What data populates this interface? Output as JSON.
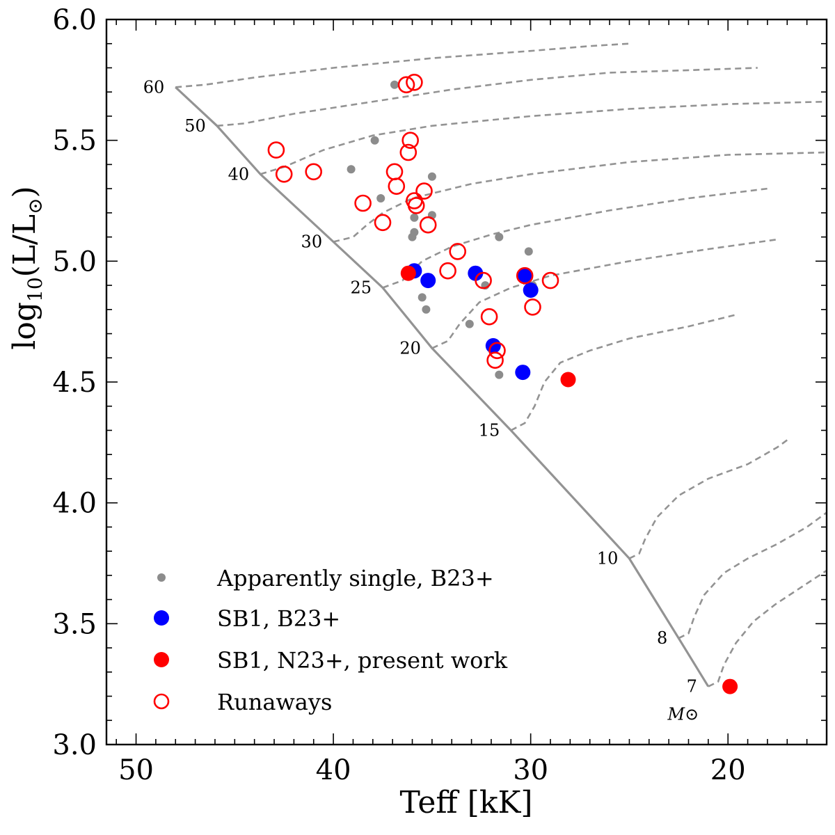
{
  "chart_data": {
    "type": "scatter",
    "xlabel": "Teff [kK]",
    "ylabel": "log10(L/L⊙)",
    "xlim": [
      51.5,
      15.0
    ],
    "ylim": [
      3.0,
      6.0
    ],
    "xticks": [
      50,
      40,
      30,
      20
    ],
    "yticks": [
      3.0,
      3.5,
      4.0,
      4.5,
      5.0,
      5.5,
      6.0
    ],
    "tick_labels_x": [
      "50",
      "40",
      "30",
      "20"
    ],
    "tick_labels_y": [
      "3.0",
      "3.5",
      "4.0",
      "4.5",
      "5.0",
      "5.5",
      "6.0"
    ],
    "zams": {
      "color": "#939393",
      "points": [
        [
          48.0,
          5.72
        ],
        [
          45.9,
          5.56
        ],
        [
          43.7,
          5.36
        ],
        [
          40.0,
          5.08
        ],
        [
          37.5,
          4.89
        ],
        [
          35.0,
          4.64
        ],
        [
          31.0,
          4.3
        ],
        [
          25.0,
          3.77
        ],
        [
          22.5,
          3.44
        ],
        [
          21.0,
          3.24
        ]
      ]
    },
    "mass_labels": [
      {
        "label": "60",
        "t": 48.0,
        "l": 5.72
      },
      {
        "label": "50",
        "t": 45.9,
        "l": 5.56
      },
      {
        "label": "40",
        "t": 43.7,
        "l": 5.36
      },
      {
        "label": "30",
        "t": 40.0,
        "l": 5.08
      },
      {
        "label": "25",
        "t": 37.5,
        "l": 4.89
      },
      {
        "label": "20",
        "t": 35.0,
        "l": 4.64
      },
      {
        "label": "15",
        "t": 31.0,
        "l": 4.3
      },
      {
        "label": "10",
        "t": 25.0,
        "l": 3.77
      },
      {
        "label": "8",
        "t": 22.5,
        "l": 3.44
      },
      {
        "label": "7",
        "t": 21.0,
        "l": 3.24
      }
    ],
    "mass_unit_label": "M⊙",
    "tracks": [
      {
        "mass": "60",
        "points": [
          [
            48.0,
            5.72
          ],
          [
            46.5,
            5.73
          ],
          [
            44.0,
            5.76
          ],
          [
            40.0,
            5.8
          ],
          [
            35.0,
            5.84
          ],
          [
            30.0,
            5.87
          ],
          [
            27.0,
            5.89
          ],
          [
            25.0,
            5.9
          ]
        ]
      },
      {
        "mass": "50",
        "points": [
          [
            45.9,
            5.56
          ],
          [
            44.5,
            5.57
          ],
          [
            42.0,
            5.61
          ],
          [
            38.0,
            5.66
          ],
          [
            34.0,
            5.71
          ],
          [
            30.0,
            5.75
          ],
          [
            26.0,
            5.78
          ],
          [
            22.0,
            5.79
          ],
          [
            18.5,
            5.8
          ]
        ]
      },
      {
        "mass": "40",
        "points": [
          [
            43.7,
            5.36
          ],
          [
            42.5,
            5.39
          ],
          [
            40.5,
            5.46
          ],
          [
            38.0,
            5.52
          ],
          [
            35.0,
            5.56
          ],
          [
            30.0,
            5.6
          ],
          [
            25.0,
            5.63
          ],
          [
            20.0,
            5.65
          ],
          [
            15.0,
            5.66
          ]
        ]
      },
      {
        "mass": "30",
        "points": [
          [
            40.0,
            5.08
          ],
          [
            39.0,
            5.1
          ],
          [
            38.3,
            5.15
          ],
          [
            37.5,
            5.2
          ],
          [
            36.0,
            5.26
          ],
          [
            33.0,
            5.32
          ],
          [
            30.0,
            5.36
          ],
          [
            25.0,
            5.41
          ],
          [
            20.0,
            5.44
          ],
          [
            15.0,
            5.45
          ]
        ]
      },
      {
        "mass": "25",
        "points": [
          [
            37.5,
            4.89
          ],
          [
            36.5,
            4.92
          ],
          [
            35.5,
            5.0
          ],
          [
            34.0,
            5.06
          ],
          [
            32.0,
            5.11
          ],
          [
            30.0,
            5.15
          ],
          [
            26.0,
            5.21
          ],
          [
            22.0,
            5.26
          ],
          [
            18.0,
            5.3
          ]
        ]
      },
      {
        "mass": "20",
        "points": [
          [
            35.0,
            4.64
          ],
          [
            34.2,
            4.67
          ],
          [
            33.6,
            4.74
          ],
          [
            32.6,
            4.83
          ],
          [
            31.0,
            4.89
          ],
          [
            29.0,
            4.94
          ],
          [
            25.0,
            5.0
          ],
          [
            21.0,
            5.05
          ],
          [
            17.5,
            5.09
          ]
        ]
      },
      {
        "mass": "15",
        "points": [
          [
            31.0,
            4.3
          ],
          [
            30.3,
            4.33
          ],
          [
            29.8,
            4.4
          ],
          [
            29.3,
            4.5
          ],
          [
            28.5,
            4.58
          ],
          [
            27.0,
            4.63
          ],
          [
            25.0,
            4.68
          ],
          [
            22.0,
            4.73
          ],
          [
            19.5,
            4.78
          ]
        ]
      },
      {
        "mass": "10",
        "points": [
          [
            25.0,
            3.77
          ],
          [
            24.5,
            3.79
          ],
          [
            24.2,
            3.85
          ],
          [
            23.6,
            3.94
          ],
          [
            22.5,
            4.03
          ],
          [
            21.0,
            4.1
          ],
          [
            19.0,
            4.16
          ],
          [
            17.5,
            4.23
          ],
          [
            17.0,
            4.26
          ]
        ]
      },
      {
        "mass": "8",
        "points": [
          [
            22.5,
            3.44
          ],
          [
            22.0,
            3.46
          ],
          [
            21.7,
            3.53
          ],
          [
            21.2,
            3.62
          ],
          [
            20.2,
            3.71
          ],
          [
            19.0,
            3.77
          ],
          [
            17.5,
            3.83
          ],
          [
            16.0,
            3.9
          ],
          [
            15.0,
            3.96
          ]
        ]
      },
      {
        "mass": "7",
        "points": [
          [
            21.0,
            3.24
          ],
          [
            20.5,
            3.26
          ],
          [
            20.2,
            3.33
          ],
          [
            19.6,
            3.42
          ],
          [
            18.7,
            3.51
          ],
          [
            17.6,
            3.58
          ],
          [
            16.3,
            3.65
          ],
          [
            15.0,
            3.72
          ]
        ]
      }
    ],
    "series": [
      {
        "name": "Apparently single, B23+",
        "marker": "small-dot",
        "color": "#8c8c8c",
        "points": [
          [
            36.9,
            5.73
          ],
          [
            37.9,
            5.5
          ],
          [
            39.1,
            5.38
          ],
          [
            37.6,
            5.26
          ],
          [
            35.9,
            5.18
          ],
          [
            35.0,
            5.35
          ],
          [
            35.0,
            5.19
          ],
          [
            36.0,
            5.1
          ],
          [
            35.9,
            5.12
          ],
          [
            31.6,
            5.1
          ],
          [
            30.1,
            5.04
          ],
          [
            35.5,
            4.85
          ],
          [
            35.3,
            4.8
          ],
          [
            33.1,
            4.74
          ],
          [
            31.6,
            4.53
          ],
          [
            32.3,
            4.9
          ],
          [
            36.1,
            4.95
          ],
          [
            29.9,
            4.9
          ]
        ]
      },
      {
        "name": "SB1, B23+",
        "marker": "filled-circle",
        "color": "#0000ff",
        "points": [
          [
            35.9,
            4.96
          ],
          [
            35.2,
            4.92
          ],
          [
            32.8,
            4.95
          ],
          [
            30.3,
            4.94
          ],
          [
            30.0,
            4.88
          ],
          [
            31.9,
            4.65
          ],
          [
            30.4,
            4.54
          ]
        ]
      },
      {
        "name": "SB1, N23+, present work",
        "marker": "filled-circle",
        "color": "#ff0000",
        "points": [
          [
            36.2,
            4.95
          ],
          [
            28.1,
            4.51
          ],
          [
            19.9,
            3.24
          ]
        ]
      },
      {
        "name": "Runaways",
        "marker": "open-circle",
        "color": "#ff0000",
        "points": [
          [
            36.3,
            5.73
          ],
          [
            35.9,
            5.74
          ],
          [
            36.1,
            5.5
          ],
          [
            36.2,
            5.45
          ],
          [
            42.9,
            5.46
          ],
          [
            42.5,
            5.36
          ],
          [
            41.0,
            5.37
          ],
          [
            36.9,
            5.37
          ],
          [
            36.8,
            5.31
          ],
          [
            38.5,
            5.24
          ],
          [
            37.5,
            5.16
          ],
          [
            35.4,
            5.29
          ],
          [
            35.9,
            5.25
          ],
          [
            35.8,
            5.23
          ],
          [
            35.2,
            5.15
          ],
          [
            33.7,
            5.04
          ],
          [
            34.2,
            4.96
          ],
          [
            32.4,
            4.92
          ],
          [
            30.3,
            4.94
          ],
          [
            29.0,
            4.92
          ],
          [
            29.9,
            4.81
          ],
          [
            32.1,
            4.77
          ],
          [
            31.7,
            4.63
          ],
          [
            31.8,
            4.59
          ]
        ]
      }
    ],
    "legend": {
      "placement": "lower-left",
      "entries": [
        "Apparently single, B23+",
        "SB1, B23+",
        "SB1, N23+, present work",
        "Runaways"
      ]
    }
  }
}
